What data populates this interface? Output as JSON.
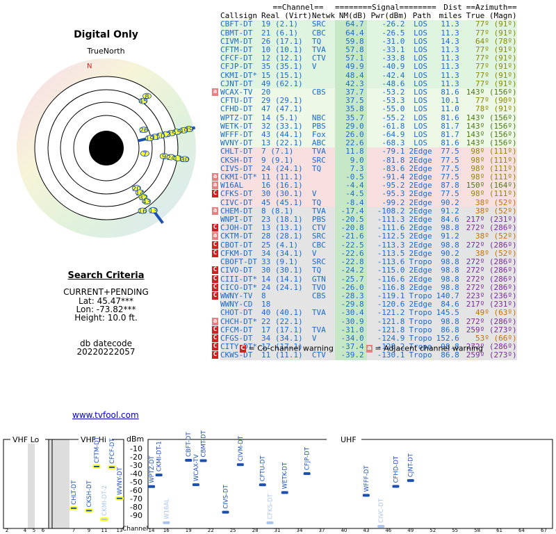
{
  "header": {
    "title": "Digital Only",
    "true_north": "TrueNorth",
    "n_label": "N"
  },
  "search": {
    "heading": "Search Criteria",
    "mode": "CURRENT+PENDING",
    "lat": "Lat: 45.47***",
    "lon": "Lon: -73.82***",
    "height": "Height: 10.0 ft.",
    "db_label": "db datecode",
    "db_code": "20220222057"
  },
  "link": "www.tvfool.com",
  "table": {
    "group_headers": [
      "==Channel==",
      "========Signal========",
      "Dist",
      "==Azimuth=="
    ],
    "columns": [
      "Callsign",
      "Real (Virt)",
      "Netwk",
      "NM(dB)",
      "Pwr(dBm)",
      "Path",
      "miles",
      "True (Magn)"
    ],
    "rows": [
      {
        "cs": "CBFT-DT",
        "ch": "19 (2.1)",
        "net": "SRC",
        "nm": "64.7",
        "pwr": "-26.2",
        "path": "LOS",
        "dist": "11.3",
        "az": "77º (91º)",
        "bg": "#dff5df",
        "fg": "#1a6ad0",
        "warn": ""
      },
      {
        "cs": "CBMT-DT",
        "ch": "21 (6.1)",
        "net": "CBC",
        "nm": "64.4",
        "pwr": "-26.5",
        "path": "LOS",
        "dist": "11.3",
        "az": "77º (91º)",
        "bg": "#dff5df",
        "fg": "#1a6ad0",
        "warn": ""
      },
      {
        "cs": "CIVM-DT",
        "ch": "26 (17.1)",
        "net": "TQ",
        "nm": "59.8",
        "pwr": "-31.0",
        "path": "LOS",
        "dist": "14.3",
        "az": "64º (78º)",
        "bg": "#dff5df",
        "fg": "#1a6ad0",
        "warn": ""
      },
      {
        "cs": "CFTM-DT",
        "ch": "10 (10.1)",
        "net": "TVA",
        "nm": "57.8",
        "pwr": "-33.1",
        "path": "LOS",
        "dist": "11.3",
        "az": "77º (91º)",
        "bg": "#dff5df",
        "fg": "#1a6ad0",
        "warn": ""
      },
      {
        "cs": "CFCF-DT",
        "ch": "12 (12.1)",
        "net": "CTV",
        "nm": "57.1",
        "pwr": "-33.8",
        "path": "LOS",
        "dist": "11.3",
        "az": "77º (91º)",
        "bg": "#dff5df",
        "fg": "#1a6ad0",
        "warn": ""
      },
      {
        "cs": "CFJP-DT",
        "ch": "35 (35.1)",
        "net": "V",
        "nm": "49.9",
        "pwr": "-40.9",
        "path": "LOS",
        "dist": "11.3",
        "az": "77º (91º)",
        "bg": "#dff5df",
        "fg": "#1a6ad0",
        "warn": ""
      },
      {
        "cs": "CKMI-DT*",
        "ch": "15 (15.1)",
        "net": "",
        "nm": "48.4",
        "pwr": "-42.4",
        "path": "LOS",
        "dist": "11.3",
        "az": "77º (91º)",
        "bg": "#dff5df",
        "fg": "#1a6ad0",
        "warn": ""
      },
      {
        "cs": "CJNT-DT",
        "ch": "49 (62.1)",
        "net": "",
        "nm": "42.3",
        "pwr": "-48.6",
        "path": "LOS",
        "dist": "11.3",
        "az": "77º (91º)",
        "bg": "#dff5df",
        "fg": "#1a6ad0",
        "warn": ""
      },
      {
        "cs": "WCAX-TV",
        "ch": "20",
        "net": "CBS",
        "nm": "37.7",
        "pwr": "-53.2",
        "path": "LOS",
        "dist": "81.6",
        "az": "143º (156º)",
        "bg": "#eef8e6",
        "fg": "#1a6ad0",
        "warn": "a"
      },
      {
        "cs": "CFTU-DT",
        "ch": "29 (29.1)",
        "net": "",
        "nm": "37.5",
        "pwr": "-53.3",
        "path": "LOS",
        "dist": "10.1",
        "az": "77º (90º)",
        "bg": "#eef8e6",
        "fg": "#1a6ad0",
        "warn": ""
      },
      {
        "cs": "CFHD-DT",
        "ch": "47 (47.1)",
        "net": "",
        "nm": "35.8",
        "pwr": "-55.0",
        "path": "LOS",
        "dist": "11.0",
        "az": "78º (91º)",
        "bg": "#eef8e6",
        "fg": "#1a6ad0",
        "warn": ""
      },
      {
        "cs": "WPTZ-DT",
        "ch": "14 (5.1)",
        "net": "NBC",
        "nm": "35.7",
        "pwr": "-55.2",
        "path": "LOS",
        "dist": "81.6",
        "az": "143º (156º)",
        "bg": "#eef8e6",
        "fg": "#1a6ad0",
        "warn": ""
      },
      {
        "cs": "WETK-DT",
        "ch": "32 (33.1)",
        "net": "PBS",
        "nm": "29.0",
        "pwr": "-61.8",
        "path": "LOS",
        "dist": "81.7",
        "az": "143º (156º)",
        "bg": "#eef8e6",
        "fg": "#1a6ad0",
        "warn": ""
      },
      {
        "cs": "WFFF-DT",
        "ch": "43 (44.1)",
        "net": "Fox",
        "nm": "26.0",
        "pwr": "-64.9",
        "path": "LOS",
        "dist": "81.7",
        "az": "143º (156º)",
        "bg": "#eef8e6",
        "fg": "#1a6ad0",
        "warn": ""
      },
      {
        "cs": "WVNY-DT",
        "ch": "13 (22.1)",
        "net": "ABC",
        "nm": "22.6",
        "pwr": "-68.3",
        "path": "LOS",
        "dist": "81.6",
        "az": "143º (156º)",
        "bg": "#eef8e6",
        "fg": "#1a6ad0",
        "warn": ""
      },
      {
        "cs": "CHLT-DT",
        "ch": "7 (7.1)",
        "net": "TVA",
        "nm": "11.8",
        "pwr": "-79.1",
        "path": "2Edge",
        "dist": "77.5",
        "az": "98º (111º)",
        "bg": "#f9e0e0",
        "fg": "#1a6ad0",
        "warn": ""
      },
      {
        "cs": "CKSH-DT",
        "ch": "9 (9.1)",
        "net": "SRC",
        "nm": "9.0",
        "pwr": "-81.8",
        "path": "2Edge",
        "dist": "77.5",
        "az": "98º (111º)",
        "bg": "#f9e0e0",
        "fg": "#1a6ad0",
        "warn": ""
      },
      {
        "cs": "CIVS-DT",
        "ch": "24 (24.1)",
        "net": "TQ",
        "nm": "7.3",
        "pwr": "-83.6",
        "path": "2Edge",
        "dist": "77.5",
        "az": "98º (111º)",
        "bg": "#f9e0e0",
        "fg": "#1a6ad0",
        "warn": ""
      },
      {
        "cs": "CKMI-DT*",
        "ch": "11 (11.1)",
        "net": "",
        "nm": "-0.5",
        "pwr": "-91.4",
        "path": "2Edge",
        "dist": "77.5",
        "az": "98º (111º)",
        "bg": "#f9e0e0",
        "fg": "#1a6ad0",
        "warn": "a"
      },
      {
        "cs": "W16AL",
        "ch": "16 (16.1)",
        "net": "",
        "nm": "-4.4",
        "pwr": "-95.2",
        "path": "2Edge",
        "dist": "87.8",
        "az": "150º (164º)",
        "bg": "#f9e0e0",
        "fg": "#1a6ad0",
        "warn": "a"
      },
      {
        "cs": "CFKS-DT",
        "ch": "30 (30.1)",
        "net": "V",
        "nm": "-4.5",
        "pwr": "-95.3",
        "path": "2Edge",
        "dist": "77.5",
        "az": "98º (111º)",
        "bg": "#f9e0e0",
        "fg": "#1a6ad0",
        "warn": "C"
      },
      {
        "cs": "CIVC-DT",
        "ch": "45 (45.1)",
        "net": "TQ",
        "nm": "-8.4",
        "pwr": "-99.2",
        "path": "2Edge",
        "dist": "90.2",
        "az": "38º (52º)",
        "bg": "#f9e0e0",
        "fg": "#1a6ad0",
        "warn": ""
      },
      {
        "cs": "CHEM-DT",
        "ch": "8 (8.1)",
        "net": "TVA",
        "nm": "-17.4",
        "pwr": "-108.2",
        "path": "2Edge",
        "dist": "91.2",
        "az": "38º (52º)",
        "bg": "#e4e4e4",
        "fg": "#1a6ad0",
        "warn": "a"
      },
      {
        "cs": "WNPI-DT",
        "ch": "23 (18.1)",
        "net": "PBS",
        "nm": "-20.5",
        "pwr": "-111.3",
        "path": "2Edge",
        "dist": "84.6",
        "az": "217º (231º)",
        "bg": "#e4e4e4",
        "fg": "#1a6ad0",
        "warn": ""
      },
      {
        "cs": "CJOH-DT",
        "ch": "13 (13.1)",
        "net": "CTV",
        "nm": "-20.8",
        "pwr": "-111.6",
        "path": "2Edge",
        "dist": "98.8",
        "az": "272º (286º)",
        "bg": "#e4e4e4",
        "fg": "#1a6ad0",
        "warn": "C"
      },
      {
        "cs": "CKTM-DT",
        "ch": "28 (28.1)",
        "net": "SRC",
        "nm": "-21.6",
        "pwr": "-112.5",
        "path": "2Edge",
        "dist": "91.2",
        "az": "38º (52º)",
        "bg": "#e4e4e4",
        "fg": "#1a6ad0",
        "warn": "a"
      },
      {
        "cs": "CBOT-DT",
        "ch": "25 (4.1)",
        "net": "CBC",
        "nm": "-22.5",
        "pwr": "-113.3",
        "path": "2Edge",
        "dist": "98.8",
        "az": "272º (286º)",
        "bg": "#e4e4e4",
        "fg": "#1a6ad0",
        "warn": "C"
      },
      {
        "cs": "CFKM-DT",
        "ch": "34 (34.1)",
        "net": "V",
        "nm": "-22.6",
        "pwr": "-113.5",
        "path": "2Edge",
        "dist": "90.2",
        "az": "38º (52º)",
        "bg": "#e4e4e4",
        "fg": "#1a6ad0",
        "warn": "C"
      },
      {
        "cs": "CBOFT-DT",
        "ch": "33 (9.1)",
        "net": "SRC",
        "nm": "-22.8",
        "pwr": "-113.6",
        "path": "Tropo",
        "dist": "98.8",
        "az": "272º (286º)",
        "bg": "#e4e4e4",
        "fg": "#1a6ad0",
        "warn": ""
      },
      {
        "cs": "CIVO-DT",
        "ch": "30 (30.1)",
        "net": "TQ",
        "nm": "-24.2",
        "pwr": "-115.0",
        "path": "2Edge",
        "dist": "98.8",
        "az": "272º (286º)",
        "bg": "#e4e4e4",
        "fg": "#1a6ad0",
        "warn": "C"
      },
      {
        "cs": "CIII-DT*",
        "ch": "14 (14.1)",
        "net": "GTN",
        "nm": "-25.7",
        "pwr": "-116.6",
        "path": "2Edge",
        "dist": "98.8",
        "az": "272º (286º)",
        "bg": "#e4e4e4",
        "fg": "#1a6ad0",
        "warn": "C"
      },
      {
        "cs": "CICO-DT*",
        "ch": "24 (24.1)",
        "net": "TVO",
        "nm": "-26.0",
        "pwr": "-116.8",
        "path": "2Edge",
        "dist": "98.8",
        "az": "272º (286º)",
        "bg": "#e4e4e4",
        "fg": "#1a6ad0",
        "warn": "C"
      },
      {
        "cs": "WWNY-TV",
        "ch": "8",
        "net": "CBS",
        "nm": "-28.3",
        "pwr": "-119.1",
        "path": "Tropo",
        "dist": "140.7",
        "az": "223º (236º)",
        "bg": "#e4e4e4",
        "fg": "#1a6ad0",
        "warn": "C"
      },
      {
        "cs": "WWNY-CD",
        "ch": "18",
        "net": "",
        "nm": "-29.8",
        "pwr": "-120.6",
        "path": "2Edge",
        "dist": "84.6",
        "az": "217º (231º)",
        "bg": "#e4e4e4",
        "fg": "#1a6ad0",
        "warn": ""
      },
      {
        "cs": "CHOT-DT",
        "ch": "40 (40.1)",
        "net": "TVA",
        "nm": "-30.4",
        "pwr": "-121.2",
        "path": "Tropo",
        "dist": "145.5",
        "az": "49º (63º)",
        "bg": "#e4e4e4",
        "fg": "#1a6ad0",
        "warn": ""
      },
      {
        "cs": "CHCH-DT*",
        "ch": "22 (22.1)",
        "net": "",
        "nm": "-30.9",
        "pwr": "-121.8",
        "path": "Tropo",
        "dist": "98.8",
        "az": "272º (286º)",
        "bg": "#e4e4e4",
        "fg": "#1a6ad0",
        "warn": "a"
      },
      {
        "cs": "CFCM-DT",
        "ch": "17 (17.1)",
        "net": "TVA",
        "nm": "-31.0",
        "pwr": "-121.8",
        "path": "Tropo",
        "dist": "86.8",
        "az": "259º (273º)",
        "bg": "#e4e4e4",
        "fg": "#1a6ad0",
        "warn": "C"
      },
      {
        "cs": "CFGS-DT",
        "ch": "34 (34.1)",
        "net": "V",
        "nm": "-34.0",
        "pwr": "-124.9",
        "path": "Tropo",
        "dist": "152.6",
        "az": "53º (66º)",
        "bg": "#e4e4e4",
        "fg": "#1a6ad0",
        "warn": "C"
      },
      {
        "cs": "CITY-DT*",
        "ch": "17 (17.1)",
        "net": "",
        "nm": "-37.4",
        "pwr": "-128.2",
        "path": "Tropo",
        "dist": "98.8",
        "az": "272º (286º)",
        "bg": "#e4e4e4",
        "fg": "#1a6ad0",
        "warn": "C"
      },
      {
        "cs": "CKWS-DT",
        "ch": "11 (11.1)",
        "net": "CTV",
        "nm": "-39.2",
        "pwr": "-130.1",
        "path": "Tropo",
        "dist": "86.8",
        "az": "259º (273º)",
        "bg": "#e4e4e4",
        "fg": "#1a6ad0",
        "warn": "C"
      }
    ]
  },
  "legend": {
    "co": "= Co-channel warning",
    "adj": "= Adjacent channel warning",
    "co_glyph": "C",
    "adj_glyph": "a"
  },
  "colors": {
    "warn_red": "#cc2222",
    "adj_pink": "#e58080",
    "nm_green": "#c6e8c6",
    "az_olive": "#8a8a00",
    "az_purple": "#7a2a9a",
    "az_orange": "#c87000"
  },
  "polar": {
    "stations": [
      {
        "label": "8",
        "az": 38
      },
      {
        "label": "45",
        "az": 38
      },
      {
        "label": "26",
        "az": 64
      },
      {
        "label": "29",
        "az": 77
      },
      {
        "label": "49",
        "az": 77
      },
      {
        "label": "15",
        "az": 77
      },
      {
        "label": "35",
        "az": 77
      },
      {
        "label": "12",
        "az": 77
      },
      {
        "label": "10",
        "az": 77
      },
      {
        "label": "21",
        "az": 77
      },
      {
        "label": "19",
        "az": 77
      },
      {
        "label": "7",
        "az": 98
      },
      {
        "label": "9",
        "az": 98
      },
      {
        "label": "24",
        "az": 98
      },
      {
        "label": "11",
        "az": 98
      },
      {
        "label": "30",
        "az": 98
      },
      {
        "label": "20",
        "az": 143
      },
      {
        "label": "14",
        "az": 143
      },
      {
        "label": "32",
        "az": 143
      },
      {
        "label": "43",
        "az": 143
      },
      {
        "label": "16",
        "az": 150
      },
      {
        "label": "13",
        "az": 143
      }
    ]
  },
  "spectrum": {
    "sections": [
      "VHF Lo",
      "VHF Hi",
      "UHF"
    ],
    "dbm_label": "dBm",
    "y_ticks": [
      "-10",
      "-20",
      "-30",
      "-40",
      "-50",
      "-60",
      "-70",
      "-80",
      "-90"
    ],
    "channel_label": "Channel",
    "channels_lo": [
      "2",
      "4",
      "5",
      "6"
    ],
    "channels_hi": [
      "7",
      "9",
      "11",
      "13"
    ],
    "channels_uhf": [
      "14",
      "16",
      "19",
      "22",
      "25",
      "28",
      "31",
      "34",
      "37",
      "40",
      "43",
      "46",
      "49",
      "52",
      "55",
      "58",
      "61",
      "64",
      "67",
      "69"
    ],
    "bars": [
      {
        "name": "CHLT-DT",
        "ch": 7,
        "pwr": -79.1
      },
      {
        "name": "CKSH-DT",
        "ch": 9,
        "pwr": -81.8
      },
      {
        "name": "CFTM-DT",
        "ch": 10,
        "pwr": -33.1
      },
      {
        "name": "CKMI-DT-2",
        "ch": 11,
        "pwr": -91.4
      },
      {
        "name": "CFCF-DT",
        "ch": 12,
        "pwr": -33.8
      },
      {
        "name": "WVNY-DT",
        "ch": 13,
        "pwr": -68.3
      },
      {
        "name": "WPTZ-DT",
        "ch": 14,
        "pwr": -55.2
      },
      {
        "name": "CKMI-DT-1",
        "ch": 15,
        "pwr": -42.4
      },
      {
        "name": "W16AL",
        "ch": 16,
        "pwr": -95.2
      },
      {
        "name": "CBFT-DT",
        "ch": 19,
        "pwr": -26.2
      },
      {
        "name": "WCAX-TV",
        "ch": 20,
        "pwr": -53.2
      },
      {
        "name": "CBMT-DT",
        "ch": 21,
        "pwr": -26.5
      },
      {
        "name": "CIVS-DT",
        "ch": 24,
        "pwr": -83.6
      },
      {
        "name": "CIVM-DT",
        "ch": 26,
        "pwr": -31.0
      },
      {
        "name": "CFTU-DT",
        "ch": 29,
        "pwr": -53.3
      },
      {
        "name": "CFKS-DT",
        "ch": 30,
        "pwr": -95.3
      },
      {
        "name": "WETK-DT",
        "ch": 32,
        "pwr": -61.8
      },
      {
        "name": "CFJP-DT",
        "ch": 35,
        "pwr": -40.9
      },
      {
        "name": "WFFF-DT",
        "ch": 43,
        "pwr": -64.9
      },
      {
        "name": "CIVC-DT",
        "ch": 45,
        "pwr": -99.2
      },
      {
        "name": "CFHD-DT",
        "ch": 47,
        "pwr": -55.0
      },
      {
        "name": "CJNT-DT",
        "ch": 49,
        "pwr": -48.6
      }
    ]
  }
}
